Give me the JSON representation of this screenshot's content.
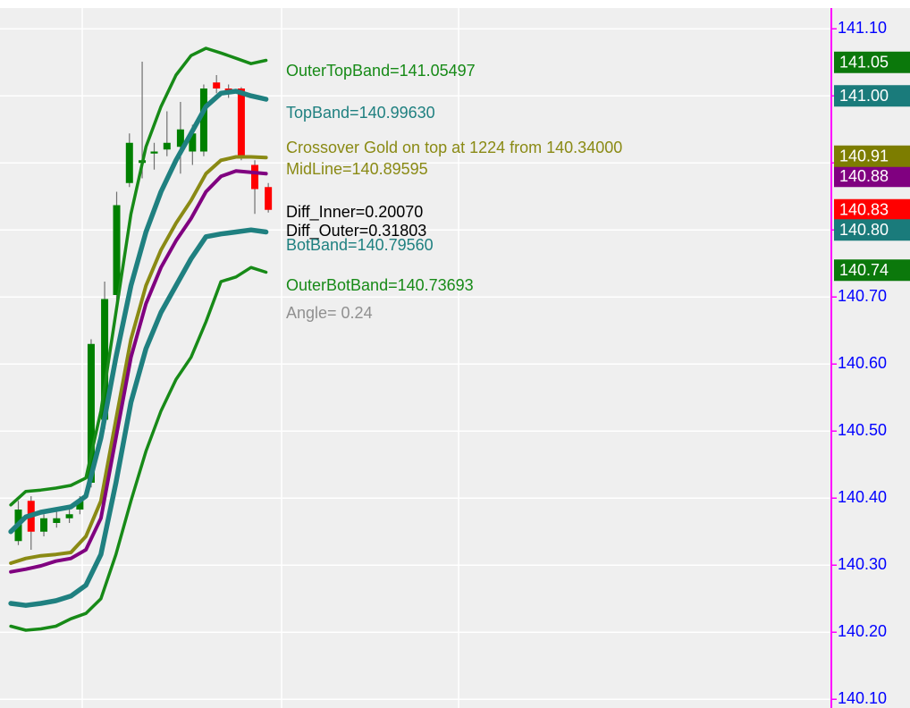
{
  "chart_data": {
    "type": "candlestick",
    "ylim": [
      140.087,
      141.131
    ],
    "xlim": [
      -0.25,
      109.3
    ],
    "yticks": [
      {
        "value": 140.1,
        "label": "140.10"
      },
      {
        "value": 140.2,
        "label": "140.20"
      },
      {
        "value": 140.3,
        "label": "140.30"
      },
      {
        "value": 140.4,
        "label": "140.40"
      },
      {
        "value": 140.5,
        "label": "140.50"
      },
      {
        "value": 140.6,
        "label": "140.60"
      },
      {
        "value": 140.7,
        "label": "140.70"
      },
      {
        "value": 140.8,
        "label": "140.80"
      },
      {
        "value": 140.9,
        "label": "140.90"
      },
      {
        "value": 141.0,
        "label": "141.00"
      },
      {
        "value": 141.1,
        "label": "141.10"
      }
    ],
    "grid": true,
    "axis_color": "#ff00ff",
    "tick_label_color": "#0000ff",
    "candles": {
      "up_color": "#008000",
      "down_color": "#ff0000",
      "wick_color": "#707070",
      "x": [
        1,
        2.7,
        4.4,
        6.1,
        7.8,
        9.2,
        10.7,
        12.5,
        14.1,
        15.8,
        17.5,
        19.1,
        20.8,
        22.6,
        24.2,
        25.7,
        27.4,
        29.0,
        30.7,
        32.5,
        34.3
      ],
      "open": [
        140.336,
        140.396,
        140.35,
        140.363,
        140.37,
        140.383,
        140.423,
        140.517,
        140.703,
        140.87,
        140.9,
        140.914,
        140.92,
        140.924,
        140.917,
        140.917,
        141.02,
        141.011,
        141.011,
        140.897,
        140.864
      ],
      "high": [
        140.396,
        140.403,
        140.376,
        140.383,
        140.39,
        140.403,
        140.637,
        140.723,
        140.857,
        140.944,
        141.051,
        140.93,
        140.977,
        140.991,
        140.957,
        141.017,
        141.031,
        141.017,
        141.013,
        140.904,
        140.87
      ],
      "low": [
        140.33,
        140.323,
        140.343,
        140.356,
        140.363,
        140.376,
        140.416,
        140.503,
        140.69,
        140.864,
        140.877,
        140.89,
        140.91,
        140.884,
        140.897,
        140.91,
        141.004,
        140.997,
        140.904,
        140.824,
        140.826
      ],
      "close": [
        140.383,
        140.35,
        140.37,
        140.37,
        140.376,
        140.396,
        140.63,
        140.697,
        140.837,
        140.93,
        140.904,
        140.917,
        140.93,
        140.95,
        140.944,
        141.011,
        141.011,
        141.007,
        140.91,
        140.861,
        140.83
      ]
    },
    "series": [
      {
        "color": "#178a17",
        "x": [
          0,
          2,
          4,
          6,
          8,
          10,
          12,
          14,
          16,
          18,
          20,
          22,
          24,
          26,
          28,
          30,
          32,
          34
        ],
        "values": [
          140.39,
          140.41,
          140.412,
          140.415,
          140.419,
          140.43,
          140.53,
          140.677,
          140.824,
          140.924,
          140.984,
          141.031,
          141.06,
          141.071,
          141.064,
          141.056,
          141.048,
          141.053
        ]
      },
      {
        "color": "#1f8080",
        "x": [
          0,
          2,
          4,
          6,
          8,
          10,
          12,
          14,
          16,
          18,
          20,
          22,
          24,
          26,
          28,
          30,
          32,
          34
        ],
        "values": [
          140.35,
          140.372,
          140.379,
          140.383,
          140.387,
          140.403,
          140.49,
          140.61,
          140.717,
          140.797,
          140.857,
          140.904,
          140.944,
          140.984,
          141.004,
          141.007,
          141.0,
          140.995
        ]
      },
      {
        "color": "#8a8a14",
        "x": [
          0,
          2,
          4,
          6,
          8,
          10,
          12,
          14,
          16,
          18,
          20,
          22,
          24,
          26,
          28,
          30,
          32,
          34
        ],
        "values": [
          140.303,
          140.31,
          140.314,
          140.316,
          140.319,
          140.343,
          140.396,
          140.517,
          140.637,
          140.717,
          140.77,
          140.81,
          140.844,
          140.884,
          140.904,
          140.909,
          140.909,
          140.908
        ]
      },
      {
        "color": "#800080",
        "x": [
          0,
          2,
          4,
          6,
          8,
          10,
          12,
          14,
          16,
          18,
          20,
          22,
          24,
          26,
          28,
          30,
          32,
          34
        ],
        "values": [
          140.29,
          140.294,
          140.299,
          140.306,
          140.31,
          140.323,
          140.37,
          140.49,
          140.61,
          140.69,
          140.744,
          140.784,
          140.817,
          140.857,
          140.88,
          140.888,
          140.886,
          140.884
        ]
      },
      {
        "color": "#1f8080",
        "x": [
          0,
          2,
          4,
          6,
          8,
          10,
          12,
          14,
          16,
          18,
          20,
          22,
          24,
          26,
          28,
          30,
          32,
          34
        ],
        "values": [
          140.243,
          140.24,
          140.243,
          140.247,
          140.254,
          140.27,
          140.316,
          140.423,
          140.543,
          140.623,
          140.677,
          140.717,
          140.757,
          140.79,
          140.794,
          140.797,
          140.8,
          140.797
        ]
      },
      {
        "color": "#178a17",
        "x": [
          0,
          2,
          4,
          6,
          8,
          10,
          12,
          14,
          16,
          18,
          20,
          22,
          24,
          26,
          28,
          30,
          32,
          34
        ],
        "values": [
          140.209,
          140.203,
          140.205,
          140.209,
          140.22,
          140.228,
          140.25,
          140.316,
          140.396,
          140.47,
          140.53,
          140.577,
          140.61,
          140.663,
          140.723,
          140.73,
          140.744,
          140.737
        ]
      }
    ],
    "annotations": [
      {
        "text": "OuterTopBand=141.05497",
        "color": "#178a17"
      },
      {
        "text": "TopBand=140.99630",
        "color": "#1f8080"
      },
      {
        "text": "Crossover Gold on top at 1224 from 140.34000",
        "color": "#8a8a14"
      },
      {
        "text": "MidLine=140.89595",
        "color": "#8a8a14"
      },
      {
        "text": "Diff_Inner=0.20070",
        "color": "#000000"
      },
      {
        "text": "Diff_Outer=0.31803",
        "color": "#000000"
      },
      {
        "text": "BotBand=140.79560",
        "color": "#1f8080"
      },
      {
        "text": "OuterBotBand=140.73693",
        "color": "#178a17"
      },
      {
        "text": "Angle= 0.24",
        "color": "#909090"
      }
    ],
    "price_tags": [
      {
        "value": 141.05,
        "label": "141.05",
        "color": "#0b780b"
      },
      {
        "value": 141.0,
        "label": "141.00",
        "color": "#1a7b7b"
      },
      {
        "value": 140.88,
        "label": "140.88",
        "color": "#800080"
      },
      {
        "value": 140.91,
        "label": "140.91",
        "color": "#7d7d00"
      },
      {
        "value": 140.83,
        "label": "140.83",
        "color": "#ff0000"
      },
      {
        "value": 140.8,
        "label": "140.80",
        "color": "#1a7b7b"
      },
      {
        "value": 140.74,
        "label": "140.74",
        "color": "#0b780b"
      }
    ]
  }
}
